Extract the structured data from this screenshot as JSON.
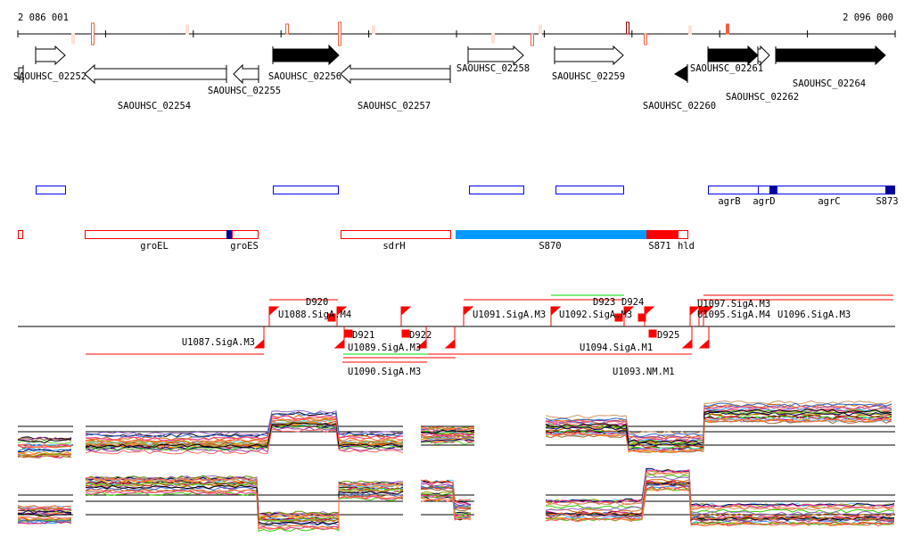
{
  "axis": {
    "start_label": "2 086 001",
    "end_label": "2 096 000"
  },
  "genes": [
    {
      "id": "SAOUHSC_02252"
    },
    {
      "id": "SAOUHSC_02254"
    },
    {
      "id": "SAOUHSC_02255"
    },
    {
      "id": "SAOUHSC_02256"
    },
    {
      "id": "SAOUHSC_02257"
    },
    {
      "id": "SAOUHSC_02258"
    },
    {
      "id": "SAOUHSC_02259"
    },
    {
      "id": "SAOUHSC_02260"
    },
    {
      "id": "SAOUHSC_02261"
    },
    {
      "id": "SAOUHSC_02262"
    },
    {
      "id": "SAOUHSC_02264"
    }
  ],
  "features": {
    "blue_row": [
      "agrB",
      "agrD",
      "agrC",
      "S873"
    ],
    "red_row": [
      "groEL",
      "groES",
      "sdrH",
      "S870",
      "S871",
      "hld"
    ]
  },
  "tss": [
    "U1087.SigA.M3",
    "U1088.SigA.M4",
    "D920",
    "D921",
    "U1089.SigA.M3",
    "U1090.SigA.M3",
    "D922",
    "U1091.SigA.M3",
    "U1092.SigA.M3",
    "D923",
    "D924",
    "D925",
    "U1094.SigA.M1",
    "U1093.NM.M1",
    "U1095.SigA.M4",
    "U1096.SigA.M3",
    "U1097.SigA.M3"
  ],
  "colors": {
    "gene_fill": "#000000",
    "feature_blue": "#0000ff",
    "feature_red": "#ff0000",
    "s870": "#0099ff",
    "navy": "#000099",
    "tss": "#ff0000",
    "green": "#00dd00"
  }
}
